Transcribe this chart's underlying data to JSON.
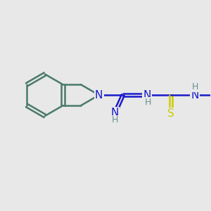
{
  "background_color": "#e8e8e8",
  "bond_color": "#4a7a6a",
  "n_color": "#1a1acc",
  "s_color": "#cccc00",
  "h_color": "#6a9090",
  "line_width": 1.8,
  "font_size_atom": 11,
  "font_size_h": 9,
  "xlim": [
    0,
    10
  ],
  "ylim": [
    0,
    10
  ]
}
